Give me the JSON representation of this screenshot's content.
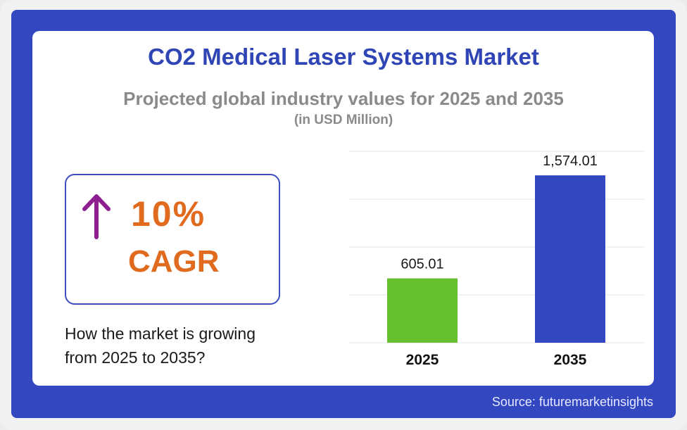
{
  "header": {
    "title": "CO2 Medical Laser Systems Market",
    "subtitle": "Projected global industry values for 2025 and 2035",
    "unit": "(in USD Million)"
  },
  "cagr": {
    "value": "10%",
    "label": "CAGR",
    "icon": "arrow-up-icon",
    "arrow_color": "#8e1f8e",
    "text_color": "#e06a1e"
  },
  "question": {
    "line1": "How the market is growing",
    "line2": "from 2025 to 2035?"
  },
  "footer": {
    "source": "Source: futuremarketinsights"
  },
  "colors": {
    "frame": "#3347c0",
    "title": "#2f45b5",
    "bar_2025": "#66c02f",
    "bar_2035": "#3347c0"
  },
  "chart_data": {
    "type": "bar",
    "categories": [
      "2025",
      "2035"
    ],
    "values": [
      605.01,
      1574.01
    ],
    "data_labels": [
      "605.01",
      "1,574.01"
    ],
    "colors": [
      "#66c02f",
      "#3347c0"
    ],
    "ylim": [
      0,
      1800
    ],
    "grid": true,
    "legend": "none"
  }
}
